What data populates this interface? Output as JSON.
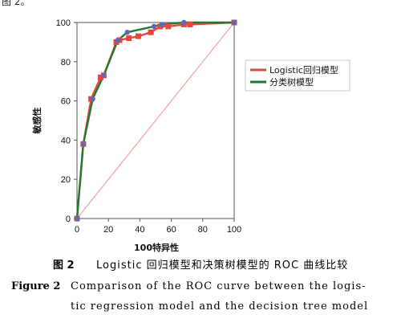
{
  "header_fragment": "图 2。",
  "chart_data": {
    "type": "line",
    "xlabel": "100特异性",
    "ylabel": "敏感性",
    "xlim": [
      0,
      100
    ],
    "ylim": [
      0,
      100
    ],
    "x_ticks": [
      "0",
      "20",
      "40",
      "60",
      "80",
      "100"
    ],
    "y_ticks": [
      "0",
      "20",
      "40",
      "60",
      "80",
      "100"
    ],
    "grid": false,
    "legend_position": "right",
    "reference_line": {
      "points": [
        [
          0,
          0
        ],
        [
          100,
          100
        ]
      ],
      "color": "#f0a0a0"
    },
    "series": [
      {
        "name": "Logistic回归模型",
        "color": "#e8463c",
        "marker": "square",
        "points": [
          [
            0,
            0
          ],
          [
            4,
            38
          ],
          [
            9,
            61
          ],
          [
            15,
            72
          ],
          [
            17,
            73
          ],
          [
            25,
            90
          ],
          [
            27,
            91
          ],
          [
            33,
            92
          ],
          [
            39,
            93
          ],
          [
            47,
            95
          ],
          [
            53,
            98
          ],
          [
            58,
            98
          ],
          [
            68,
            99
          ],
          [
            72,
            99
          ],
          [
            100,
            100
          ]
        ]
      },
      {
        "name": "分类树模型",
        "color": "#1f7a2e",
        "marker": "circle",
        "marker_color": "#5a6ab8",
        "points": [
          [
            0,
            0
          ],
          [
            4,
            38
          ],
          [
            10,
            61
          ],
          [
            17,
            73
          ],
          [
            26,
            91
          ],
          [
            32,
            95
          ],
          [
            49,
            98
          ],
          [
            54,
            99
          ],
          [
            68,
            100
          ],
          [
            100,
            100
          ]
        ]
      }
    ]
  },
  "caption": {
    "zh_label": "图 2",
    "zh_text": "Logistic 回归模型和决策树模型的 ROC 曲线比较",
    "en_label": "Figure 2",
    "en_text_line1": "Comparison of the ROC curve between the logis-",
    "en_text_line2": "tic regression model and the decision tree model"
  }
}
